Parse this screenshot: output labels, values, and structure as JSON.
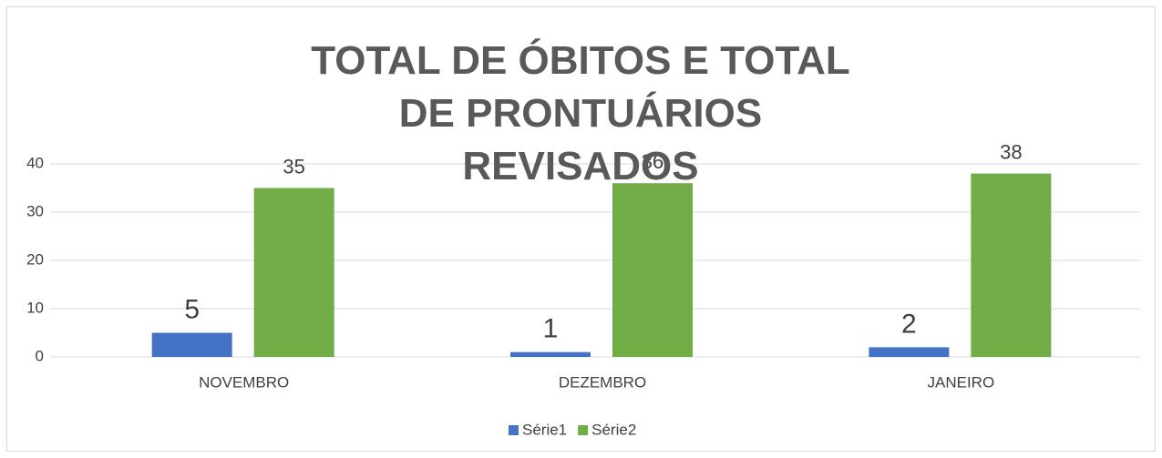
{
  "chart_data": {
    "type": "bar",
    "title": "TOTAL DE ÓBITOS E TOTAL DE PRONTUÁRIOS REVISADOS",
    "categories": [
      "NOVEMBRO",
      "DEZEMBRO",
      "JANEIRO"
    ],
    "series": [
      {
        "name": "Série1",
        "color": "#4472c4",
        "values": [
          5,
          1,
          2
        ]
      },
      {
        "name": "Série2",
        "color": "#70ad47",
        "values": [
          35,
          36,
          38
        ]
      }
    ],
    "ylim": [
      0,
      40
    ],
    "yticks": [
      0,
      10,
      20,
      30,
      40
    ],
    "grid": true,
    "legend": "bottom"
  }
}
